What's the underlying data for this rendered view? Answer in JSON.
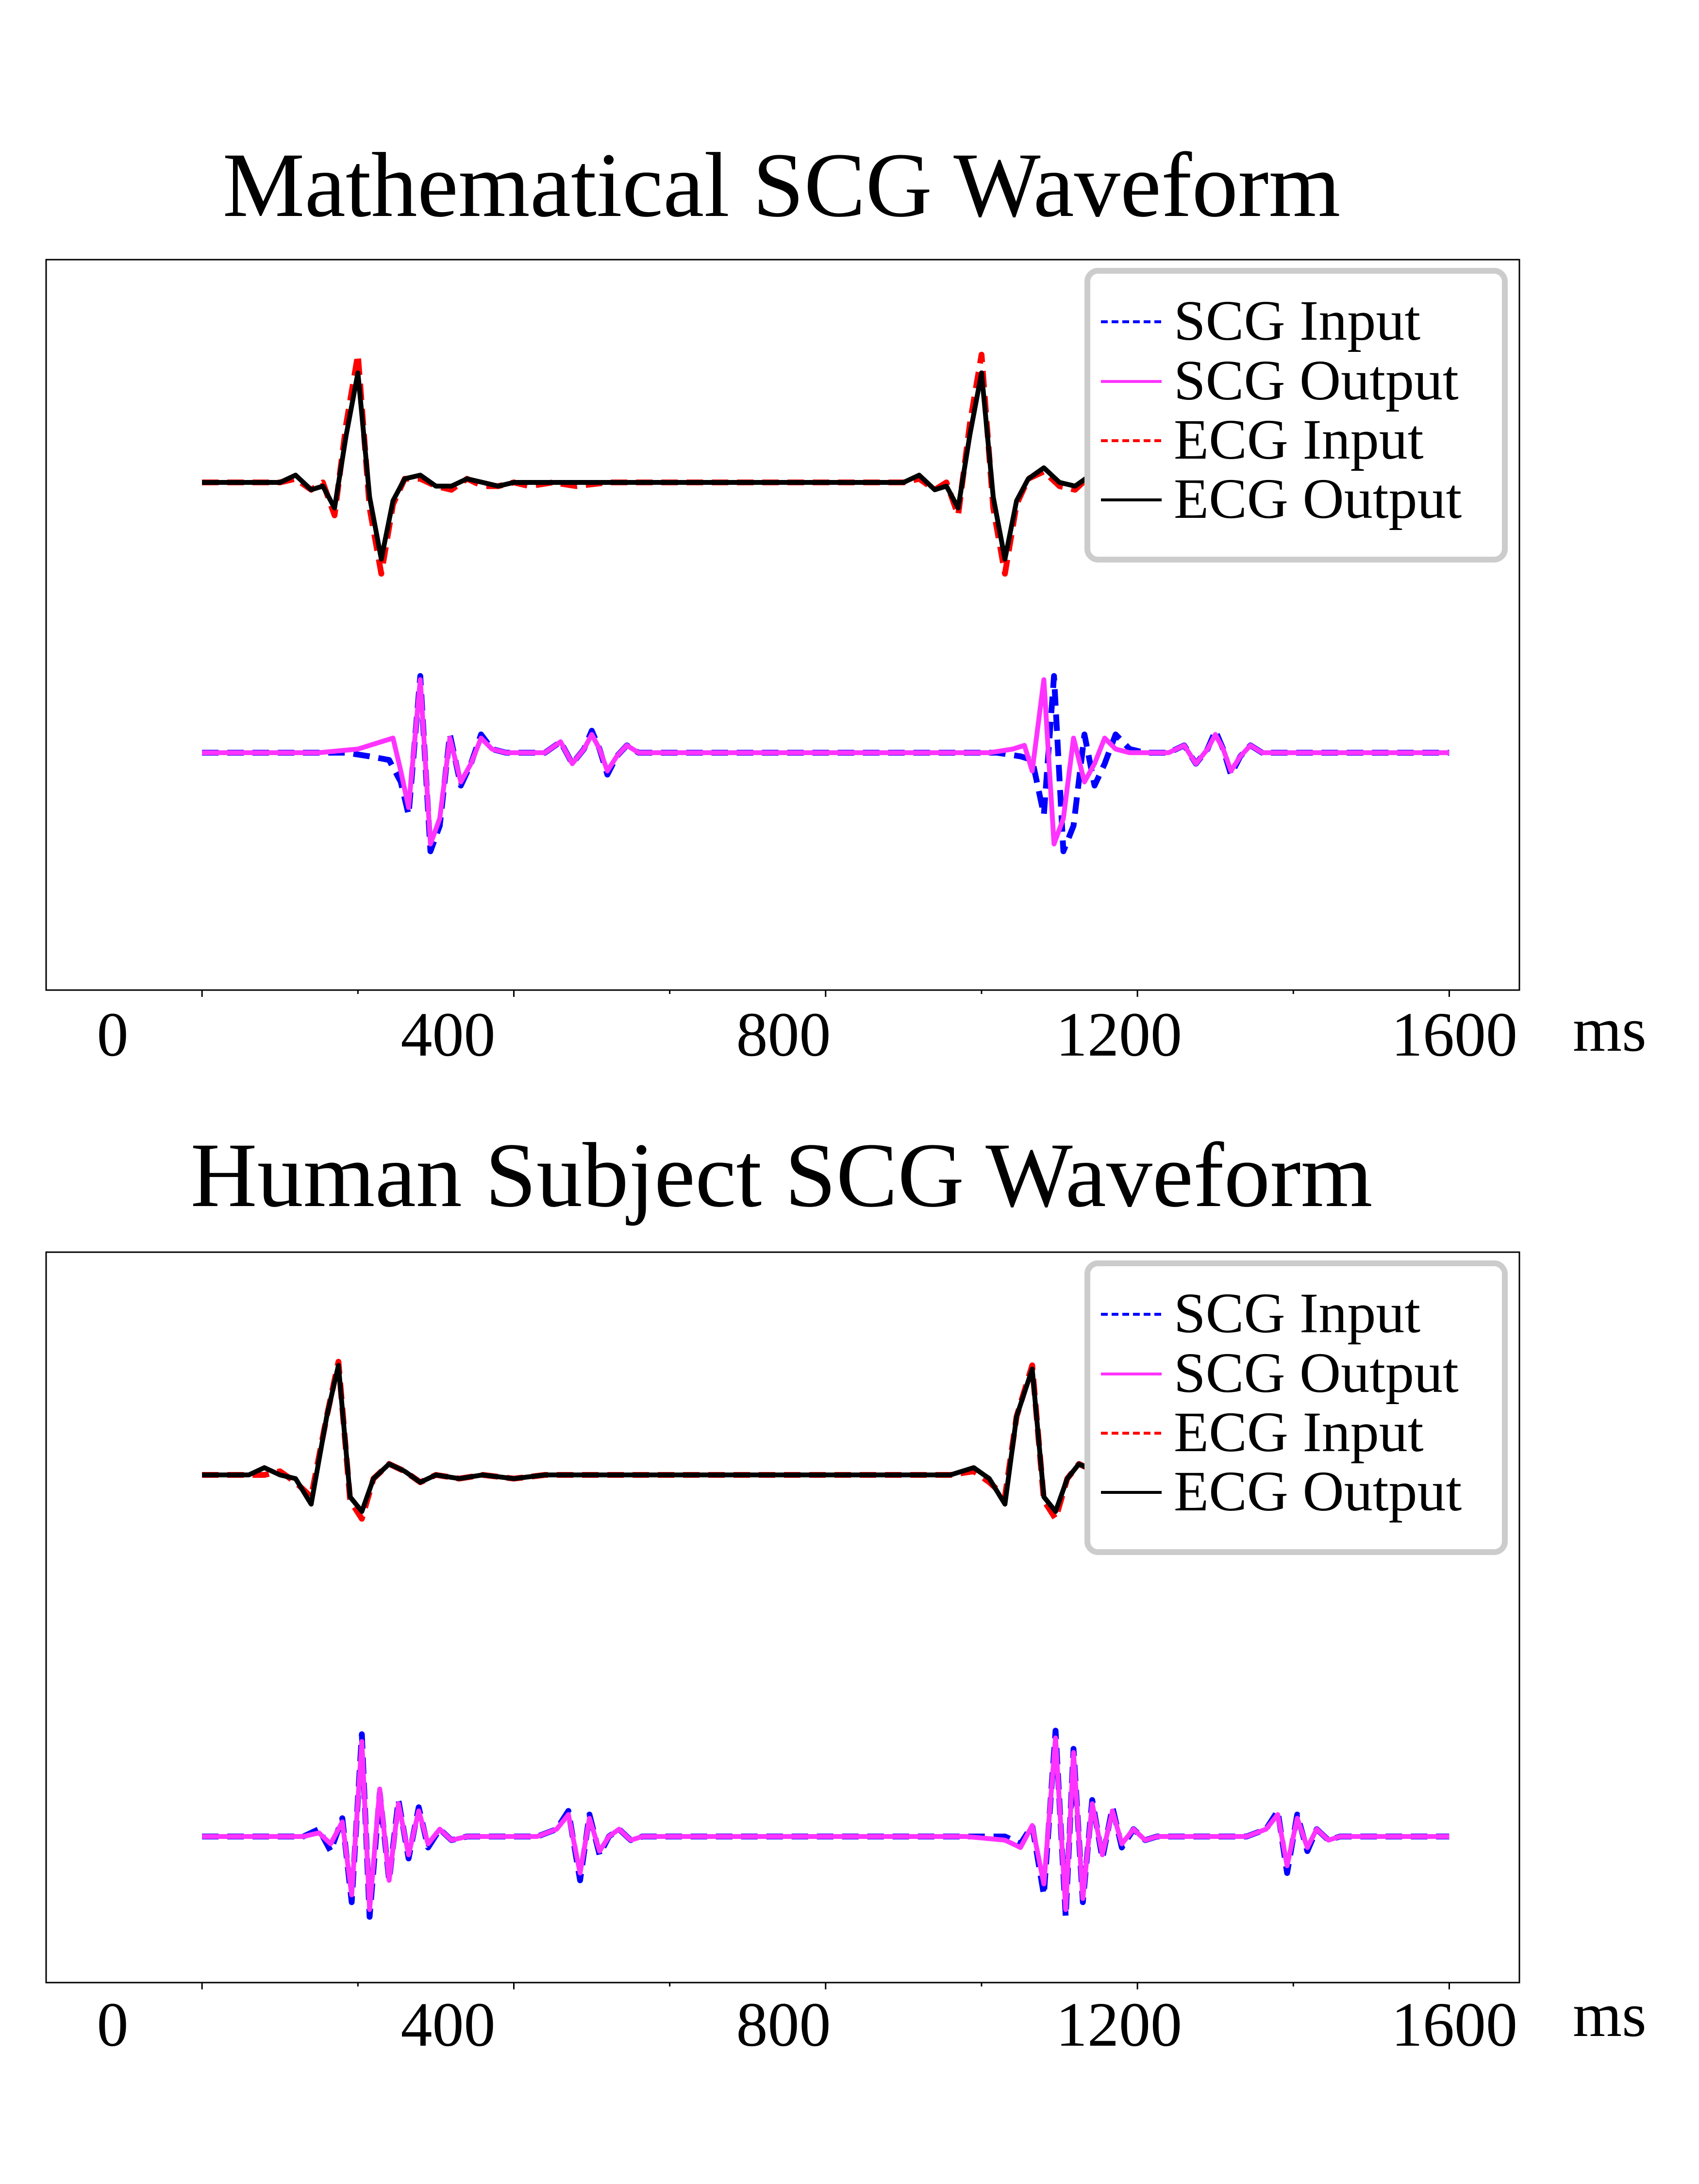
{
  "chart_data": [
    {
      "type": "line",
      "title": "Mathematical SCG Waveform",
      "xlabel": "ms",
      "ylabel": "",
      "xlim": [
        -200,
        1690
      ],
      "ylim": [
        -1,
        1
      ],
      "xticks": [
        0,
        400,
        800,
        1200,
        1600
      ],
      "minor_xticks": [
        200,
        600,
        1000,
        1400
      ],
      "grid": false,
      "show_yaxis": false,
      "legend": {
        "position": "top-right",
        "entries": [
          "SCG Input",
          "SCG Output",
          "ECG Input",
          "ECG Output"
        ]
      },
      "series": [
        {
          "name": "SCG Input",
          "color": "#0000ff",
          "style": "dashed",
          "x": [
            0,
            130,
            185,
            215,
            240,
            255,
            265,
            280,
            293,
            305,
            318,
            332,
            345,
            358,
            372,
            390,
            410,
            440,
            460,
            475,
            490,
            500,
            510,
            520,
            532,
            545,
            560,
            600,
            650,
            700,
            750,
            800,
            850,
            900,
            960,
            1020,
            1050,
            1065,
            1080,
            1093,
            1105,
            1118,
            1132,
            1145,
            1158,
            1172,
            1190,
            1210,
            1240,
            1260,
            1275,
            1290,
            1300,
            1310,
            1320,
            1332,
            1345,
            1360,
            1400,
            1450,
            1500,
            1550,
            1600
          ],
          "y": [
            -0.35,
            -0.35,
            -0.35,
            -0.36,
            -0.37,
            -0.43,
            -0.52,
            -0.14,
            -0.62,
            -0.55,
            -0.3,
            -0.44,
            -0.38,
            -0.3,
            -0.34,
            -0.35,
            -0.35,
            -0.35,
            -0.32,
            -0.38,
            -0.34,
            -0.29,
            -0.34,
            -0.41,
            -0.36,
            -0.33,
            -0.35,
            -0.35,
            -0.35,
            -0.35,
            -0.35,
            -0.35,
            -0.35,
            -0.35,
            -0.35,
            -0.35,
            -0.36,
            -0.37,
            -0.52,
            -0.14,
            -0.62,
            -0.55,
            -0.3,
            -0.44,
            -0.38,
            -0.3,
            -0.34,
            -0.35,
            -0.35,
            -0.33,
            -0.38,
            -0.34,
            -0.29,
            -0.34,
            -0.41,
            -0.36,
            -0.33,
            -0.35,
            -0.35,
            -0.35,
            -0.35,
            -0.35,
            -0.35
          ]
        },
        {
          "name": "SCG Output",
          "color": "#ff33ff",
          "style": "solid",
          "x": [
            0,
            150,
            200,
            230,
            245,
            255,
            265,
            280,
            293,
            305,
            318,
            332,
            345,
            358,
            372,
            390,
            410,
            440,
            460,
            475,
            490,
            500,
            510,
            520,
            532,
            545,
            560,
            600,
            650,
            700,
            750,
            800,
            850,
            900,
            950,
            1010,
            1040,
            1055,
            1065,
            1080,
            1093,
            1105,
            1118,
            1132,
            1145,
            1158,
            1172,
            1190,
            1210,
            1240,
            1260,
            1275,
            1290,
            1300,
            1310,
            1320,
            1332,
            1345,
            1360,
            1400,
            1450,
            1500,
            1550,
            1600
          ],
          "y": [
            -0.35,
            -0.35,
            -0.34,
            -0.32,
            -0.31,
            -0.4,
            -0.5,
            -0.15,
            -0.6,
            -0.53,
            -0.31,
            -0.43,
            -0.38,
            -0.31,
            -0.34,
            -0.35,
            -0.35,
            -0.35,
            -0.32,
            -0.38,
            -0.34,
            -0.3,
            -0.34,
            -0.4,
            -0.36,
            -0.33,
            -0.35,
            -0.35,
            -0.35,
            -0.35,
            -0.35,
            -0.35,
            -0.35,
            -0.35,
            -0.35,
            -0.35,
            -0.34,
            -0.33,
            -0.4,
            -0.15,
            -0.6,
            -0.53,
            -0.31,
            -0.43,
            -0.38,
            -0.31,
            -0.34,
            -0.35,
            -0.35,
            -0.35,
            -0.33,
            -0.38,
            -0.34,
            -0.3,
            -0.34,
            -0.4,
            -0.36,
            -0.33,
            -0.35,
            -0.35,
            -0.35,
            -0.35,
            -0.35,
            -0.35
          ]
        },
        {
          "name": "ECG Input",
          "color": "#ff0000",
          "style": "dashed",
          "x": [
            0,
            100,
            120,
            140,
            155,
            170,
            185,
            200,
            215,
            230,
            245,
            260,
            280,
            300,
            320,
            340,
            360,
            380,
            400,
            420,
            450,
            480,
            520,
            560,
            600,
            650,
            700,
            750,
            800,
            850,
            900,
            920,
            940,
            955,
            970,
            985,
            1000,
            1015,
            1030,
            1045,
            1060,
            1080,
            1100,
            1120,
            1140,
            1160,
            1180,
            1200,
            1220,
            1250,
            1280,
            1320,
            1360,
            1400,
            1450,
            1500,
            1550,
            1600
          ],
          "y": [
            0.39,
            0.39,
            0.4,
            0.37,
            0.39,
            0.3,
            0.55,
            0.74,
            0.32,
            0.14,
            0.33,
            0.4,
            0.4,
            0.38,
            0.37,
            0.4,
            0.38,
            0.38,
            0.39,
            0.38,
            0.39,
            0.38,
            0.39,
            0.39,
            0.39,
            0.39,
            0.39,
            0.39,
            0.39,
            0.39,
            0.39,
            0.4,
            0.37,
            0.39,
            0.3,
            0.55,
            0.74,
            0.32,
            0.14,
            0.33,
            0.4,
            0.42,
            0.38,
            0.37,
            0.41,
            0.38,
            0.38,
            0.39,
            0.38,
            0.39,
            0.38,
            0.39,
            0.39,
            0.39,
            0.39,
            0.39,
            0.39,
            0.39
          ]
        },
        {
          "name": "ECG Output",
          "color": "#000000",
          "style": "solid",
          "x": [
            0,
            100,
            120,
            140,
            155,
            170,
            185,
            200,
            215,
            230,
            245,
            260,
            280,
            300,
            320,
            340,
            360,
            380,
            400,
            420,
            450,
            480,
            520,
            560,
            600,
            650,
            700,
            750,
            800,
            850,
            900,
            920,
            940,
            955,
            970,
            985,
            1000,
            1015,
            1030,
            1045,
            1060,
            1080,
            1100,
            1120,
            1140,
            1160,
            1180,
            1200,
            1220,
            1250,
            1280,
            1320,
            1360,
            1400,
            1450,
            1500,
            1550,
            1600
          ],
          "y": [
            0.39,
            0.39,
            0.41,
            0.37,
            0.38,
            0.32,
            0.52,
            0.69,
            0.35,
            0.18,
            0.34,
            0.4,
            0.41,
            0.38,
            0.38,
            0.4,
            0.39,
            0.38,
            0.39,
            0.39,
            0.39,
            0.39,
            0.39,
            0.39,
            0.39,
            0.39,
            0.39,
            0.39,
            0.39,
            0.39,
            0.39,
            0.41,
            0.37,
            0.38,
            0.32,
            0.52,
            0.69,
            0.35,
            0.18,
            0.34,
            0.4,
            0.43,
            0.39,
            0.38,
            0.41,
            0.39,
            0.38,
            0.39,
            0.39,
            0.39,
            0.39,
            0.39,
            0.39,
            0.39,
            0.39,
            0.39,
            0.39,
            0.39
          ]
        }
      ]
    },
    {
      "type": "line",
      "title": "Human Subject SCG Waveform",
      "xlabel": "ms",
      "ylabel": "",
      "xlim": [
        -200,
        1690
      ],
      "ylim": [
        -1,
        1
      ],
      "xticks": [
        0,
        400,
        800,
        1200,
        1600
      ],
      "minor_xticks": [
        200,
        600,
        1000,
        1400
      ],
      "grid": false,
      "show_yaxis": false,
      "legend": {
        "position": "top-right",
        "entries": [
          "SCG Input",
          "SCG Output",
          "ECG Input",
          "ECG Output"
        ]
      },
      "series": [
        {
          "name": "SCG Input",
          "color": "#0000ff",
          "style": "dashed",
          "x": [
            0,
            130,
            150,
            165,
            180,
            192,
            205,
            215,
            228,
            240,
            252,
            265,
            278,
            290,
            305,
            320,
            340,
            380,
            430,
            455,
            470,
            485,
            497,
            510,
            522,
            535,
            550,
            565,
            580,
            620,
            700,
            800,
            900,
            980,
            1030,
            1050,
            1065,
            1080,
            1095,
            1108,
            1118,
            1130,
            1142,
            1155,
            1168,
            1180,
            1195,
            1210,
            1225,
            1245,
            1290,
            1340,
            1365,
            1380,
            1392,
            1405,
            1418,
            1430,
            1445,
            1460,
            1480,
            1520,
            1600
          ],
          "y": [
            -0.6,
            -0.6,
            -0.58,
            -0.64,
            -0.55,
            -0.78,
            -0.32,
            -0.82,
            -0.48,
            -0.72,
            -0.5,
            -0.66,
            -0.52,
            -0.63,
            -0.58,
            -0.61,
            -0.6,
            -0.6,
            -0.6,
            -0.58,
            -0.53,
            -0.72,
            -0.54,
            -0.65,
            -0.6,
            -0.58,
            -0.61,
            -0.6,
            -0.6,
            -0.6,
            -0.6,
            -0.6,
            -0.6,
            -0.6,
            -0.6,
            -0.62,
            -0.57,
            -0.76,
            -0.31,
            -0.82,
            -0.36,
            -0.78,
            -0.5,
            -0.66,
            -0.52,
            -0.63,
            -0.58,
            -0.61,
            -0.6,
            -0.6,
            -0.6,
            -0.6,
            -0.58,
            -0.53,
            -0.7,
            -0.54,
            -0.64,
            -0.58,
            -0.61,
            -0.6,
            -0.6,
            -0.6,
            -0.6
          ]
        },
        {
          "name": "SCG Output",
          "color": "#ff33ff",
          "style": "solid",
          "x": [
            0,
            130,
            150,
            165,
            180,
            192,
            205,
            215,
            228,
            240,
            252,
            265,
            278,
            290,
            305,
            320,
            340,
            380,
            430,
            455,
            470,
            485,
            497,
            510,
            522,
            535,
            550,
            565,
            580,
            620,
            700,
            800,
            900,
            980,
            1030,
            1050,
            1065,
            1080,
            1095,
            1108,
            1118,
            1130,
            1142,
            1155,
            1168,
            1180,
            1195,
            1210,
            1225,
            1245,
            1290,
            1340,
            1365,
            1380,
            1392,
            1405,
            1418,
            1430,
            1445,
            1460,
            1480,
            1520,
            1600
          ],
          "y": [
            -0.6,
            -0.6,
            -0.59,
            -0.62,
            -0.56,
            -0.76,
            -0.34,
            -0.8,
            -0.47,
            -0.72,
            -0.51,
            -0.65,
            -0.53,
            -0.62,
            -0.58,
            -0.61,
            -0.6,
            -0.6,
            -0.6,
            -0.58,
            -0.54,
            -0.7,
            -0.55,
            -0.64,
            -0.6,
            -0.58,
            -0.61,
            -0.6,
            -0.6,
            -0.6,
            -0.6,
            -0.6,
            -0.6,
            -0.6,
            -0.61,
            -0.63,
            -0.57,
            -0.73,
            -0.33,
            -0.8,
            -0.37,
            -0.77,
            -0.51,
            -0.65,
            -0.53,
            -0.62,
            -0.58,
            -0.61,
            -0.6,
            -0.6,
            -0.6,
            -0.6,
            -0.58,
            -0.54,
            -0.68,
            -0.55,
            -0.63,
            -0.58,
            -0.61,
            -0.6,
            -0.6,
            -0.6,
            -0.6
          ]
        },
        {
          "name": "ECG Input",
          "color": "#ff0000",
          "style": "dashed",
          "x": [
            0,
            60,
            80,
            100,
            120,
            140,
            160,
            175,
            190,
            205,
            220,
            240,
            260,
            280,
            300,
            330,
            360,
            400,
            440,
            480,
            520,
            560,
            600,
            700,
            800,
            900,
            960,
            990,
            1010,
            1030,
            1045,
            1065,
            1080,
            1095,
            1110,
            1125,
            1145,
            1165,
            1185,
            1205,
            1230,
            1260,
            1300,
            1340,
            1380,
            1420,
            1460,
            1500,
            1550,
            1600
          ],
          "y": [
            0.39,
            0.39,
            0.39,
            0.4,
            0.37,
            0.33,
            0.55,
            0.7,
            0.32,
            0.27,
            0.38,
            0.42,
            0.4,
            0.37,
            0.39,
            0.38,
            0.39,
            0.38,
            0.39,
            0.39,
            0.39,
            0.39,
            0.39,
            0.39,
            0.39,
            0.39,
            0.39,
            0.4,
            0.37,
            0.33,
            0.55,
            0.69,
            0.32,
            0.27,
            0.38,
            0.42,
            0.4,
            0.37,
            0.39,
            0.38,
            0.39,
            0.38,
            0.39,
            0.39,
            0.39,
            0.39,
            0.39,
            0.39,
            0.39,
            0.39
          ]
        },
        {
          "name": "ECG Output",
          "color": "#000000",
          "style": "solid",
          "x": [
            0,
            60,
            80,
            100,
            120,
            140,
            160,
            175,
            190,
            205,
            220,
            240,
            260,
            280,
            300,
            330,
            360,
            400,
            440,
            480,
            520,
            560,
            600,
            700,
            800,
            900,
            960,
            990,
            1010,
            1030,
            1045,
            1065,
            1080,
            1095,
            1110,
            1125,
            1145,
            1165,
            1185,
            1205,
            1230,
            1260,
            1300,
            1340,
            1380,
            1420,
            1460,
            1500,
            1550,
            1600
          ],
          "y": [
            0.39,
            0.39,
            0.41,
            0.39,
            0.38,
            0.31,
            0.55,
            0.69,
            0.33,
            0.29,
            0.38,
            0.42,
            0.4,
            0.37,
            0.39,
            0.38,
            0.39,
            0.38,
            0.39,
            0.39,
            0.39,
            0.39,
            0.39,
            0.39,
            0.39,
            0.39,
            0.39,
            0.41,
            0.38,
            0.31,
            0.55,
            0.68,
            0.33,
            0.29,
            0.38,
            0.42,
            0.4,
            0.37,
            0.39,
            0.38,
            0.39,
            0.38,
            0.39,
            0.39,
            0.39,
            0.39,
            0.39,
            0.39,
            0.39,
            0.39
          ]
        }
      ]
    }
  ]
}
